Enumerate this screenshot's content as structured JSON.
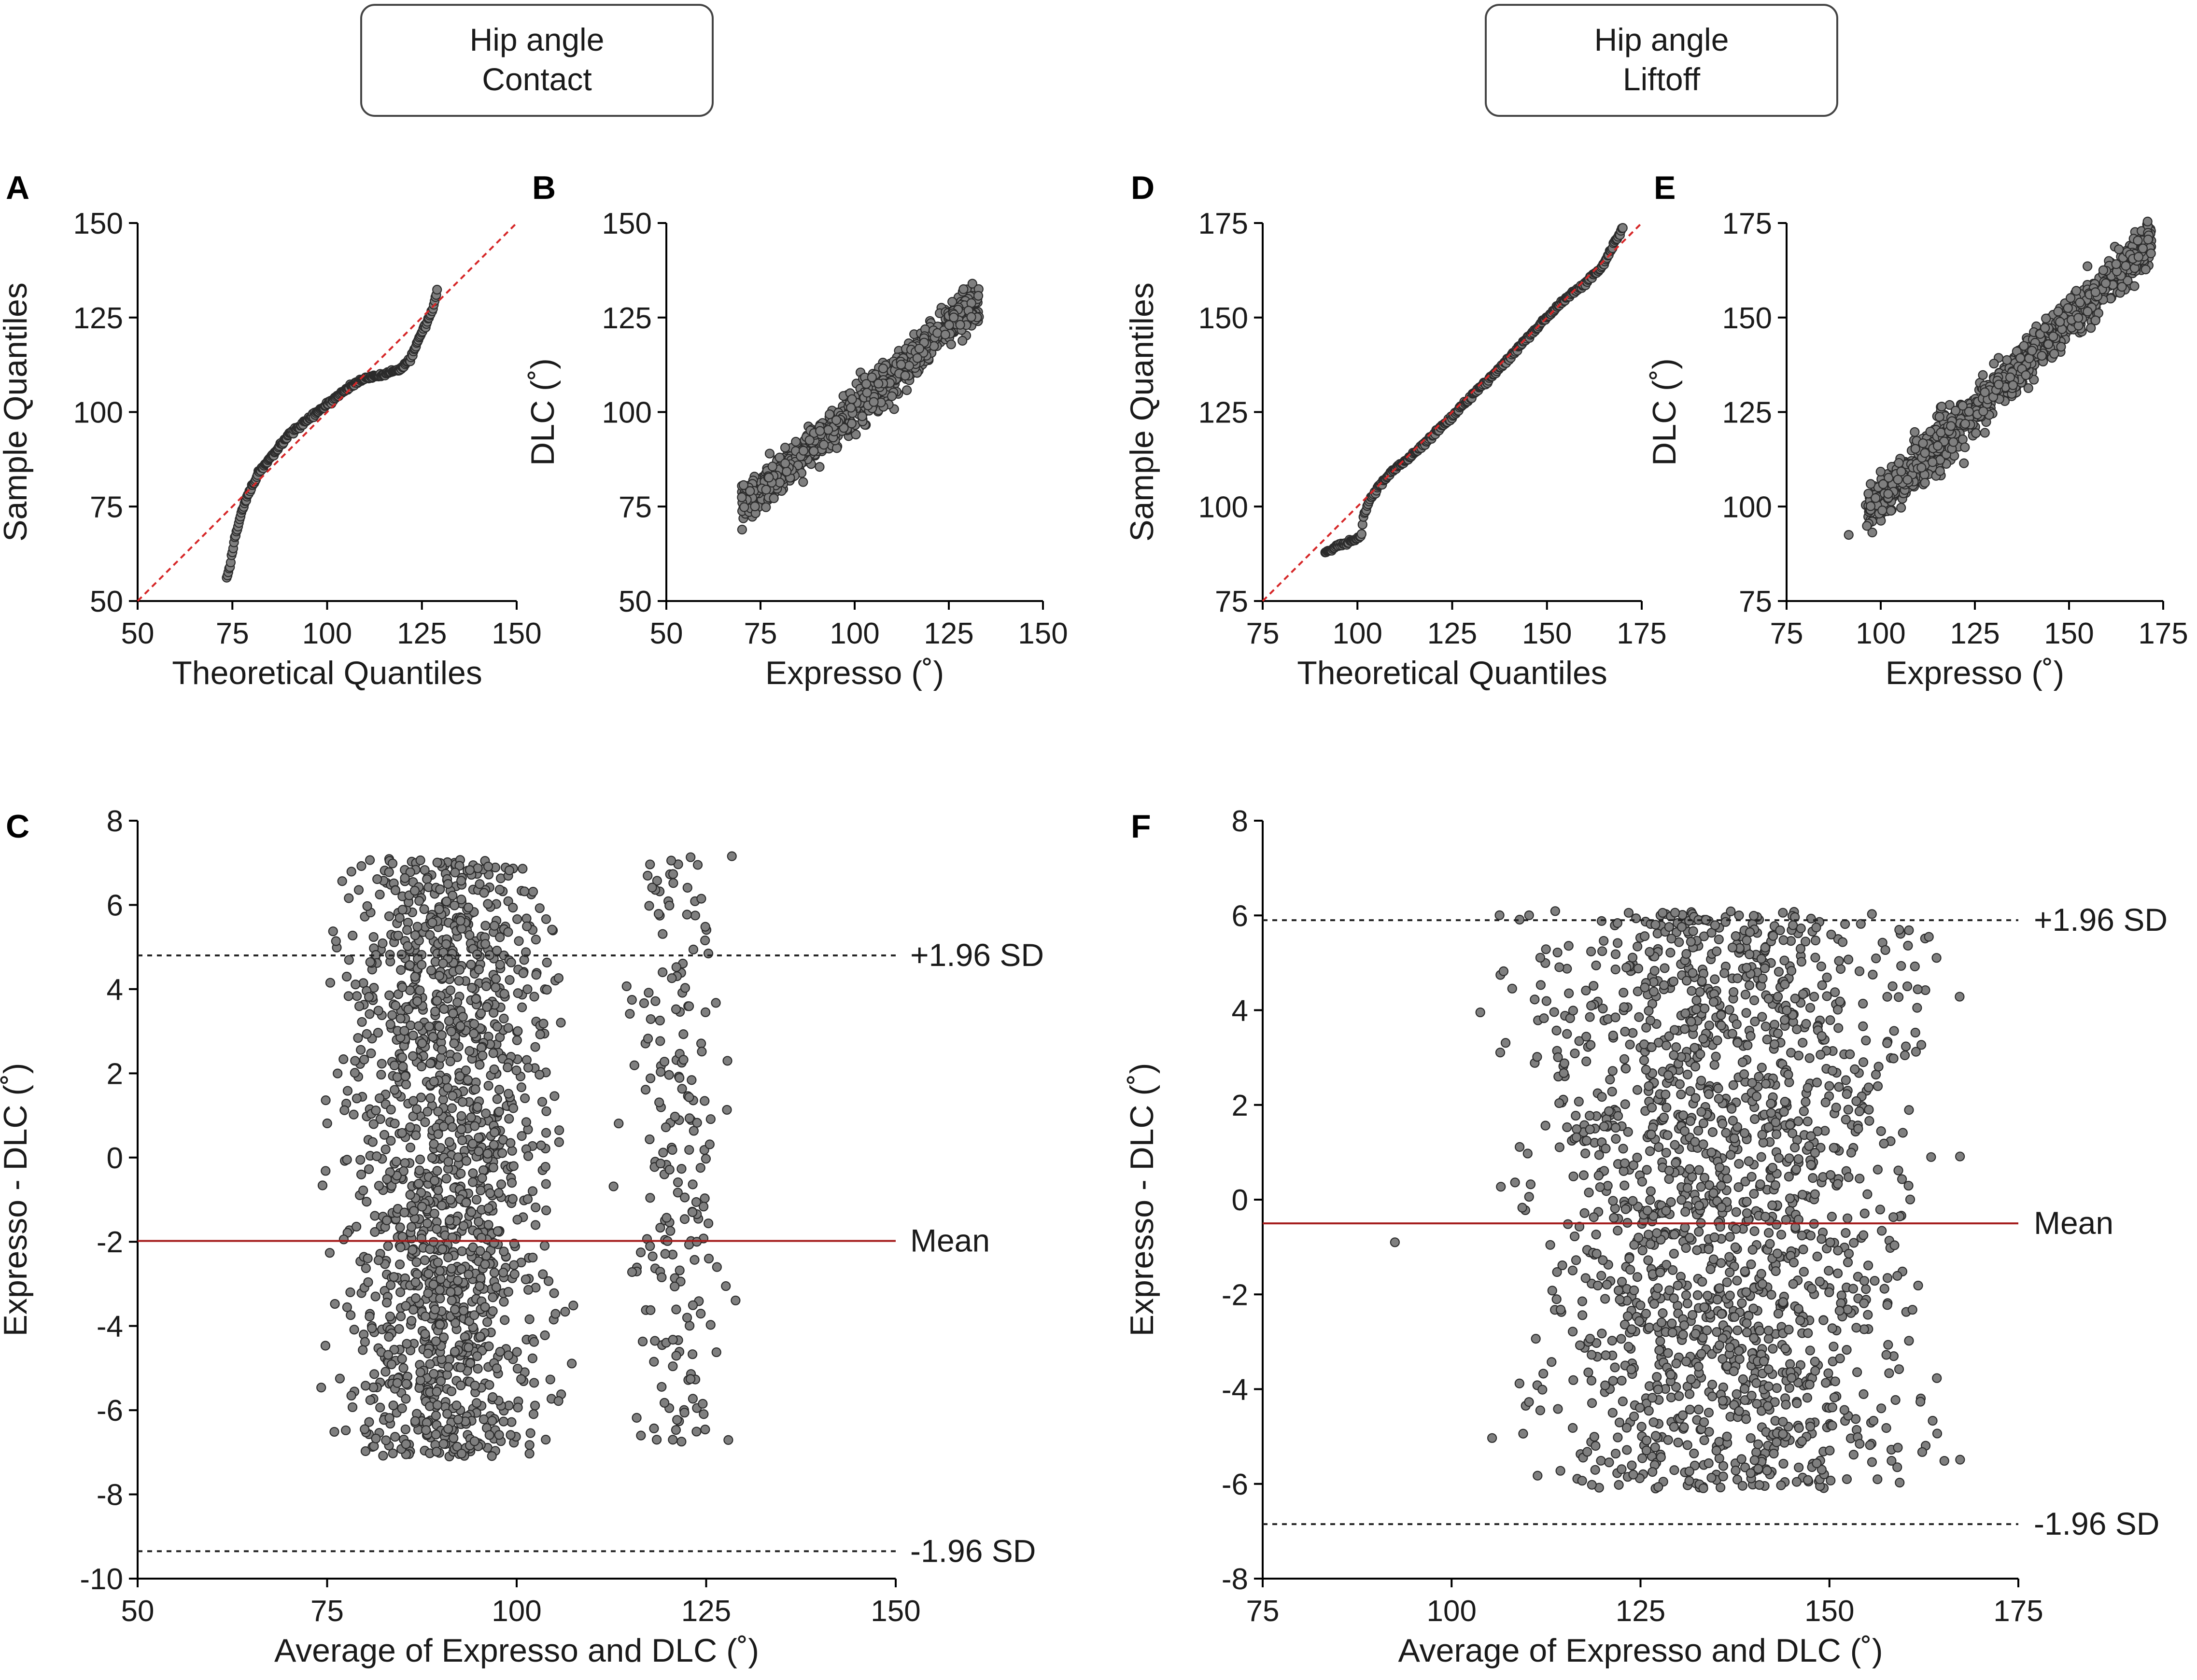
{
  "groups": [
    {
      "title_line1": "Hip angle",
      "title_line2": "Contact"
    },
    {
      "title_line1": "Hip angle",
      "title_line2": "Liftoff"
    }
  ],
  "style": {
    "marker_fill": "#7f7f7f",
    "marker_edge": "#2b2b2b",
    "reference_color": "#d62728",
    "mean_color": "#a51c1c"
  },
  "chart_data": [
    {
      "id": "A",
      "letter": "A",
      "type": "scatter",
      "kind": "qq",
      "xlabel": "Theoretical Quantiles",
      "ylabel": "Sample Quantiles",
      "xlim": [
        50,
        150
      ],
      "ylim": [
        50,
        150
      ],
      "xticks": [
        50,
        75,
        100,
        125,
        150
      ],
      "yticks": [
        50,
        75,
        100,
        125,
        150
      ],
      "reference_line": {
        "from": [
          50,
          50
        ],
        "to": [
          150,
          150
        ],
        "style": "dashed",
        "color": "#d62728"
      },
      "curve": {
        "x": [
          73.5,
          74.5,
          75.5,
          77,
          79,
          82,
          86,
          90,
          95,
          100,
          105,
          110,
          115,
          119,
          122,
          124,
          126,
          128,
          129
        ],
        "y": [
          56,
          60,
          66,
          72,
          78,
          84,
          89,
          94,
          98,
          102,
          106,
          109,
          110,
          111,
          114,
          119,
          123,
          128,
          132
        ]
      },
      "n_points": 260
    },
    {
      "id": "B",
      "letter": "B",
      "type": "scatter",
      "kind": "scatter",
      "xlabel": "Expresso (˚)",
      "ylabel": "DLC (˚)",
      "xlim": [
        50,
        150
      ],
      "ylim": [
        50,
        150
      ],
      "xticks": [
        50,
        75,
        100,
        125,
        150
      ],
      "yticks": [
        50,
        75,
        100,
        125,
        150
      ],
      "trend": {
        "x_range": [
          70,
          133
        ],
        "slope": 0.87,
        "intercept": 14,
        "spread": 2.8
      },
      "n_points": 900
    },
    {
      "id": "C",
      "letter": "C",
      "type": "scatter",
      "kind": "bland-altman",
      "xlabel": "Average of Expresso and DLC (˚)",
      "ylabel": "Expresso - DLC (˚)",
      "xlim": [
        50,
        150
      ],
      "ylim": [
        -10,
        8
      ],
      "xticks": [
        50,
        75,
        100,
        125,
        150
      ],
      "yticks": [
        -10,
        -8,
        -6,
        -4,
        -2,
        0,
        2,
        4,
        6,
        8
      ],
      "mean": -1.98,
      "upper_loa": 4.8,
      "lower_loa": -9.35,
      "mean_label": "Mean",
      "upper_label": "+1.96 SD",
      "lower_label": "-1.96 SD",
      "clusters": [
        {
          "x_range": [
            72,
            110
          ],
          "y_range": [
            -7.1,
            7.1
          ],
          "n": 1500
        },
        {
          "x_range": [
            112,
            130
          ],
          "y_range": [
            -7.0,
            7.2
          ],
          "n": 200
        }
      ]
    },
    {
      "id": "D",
      "letter": "D",
      "type": "scatter",
      "kind": "qq",
      "xlabel": "Theoretical Quantiles",
      "ylabel": "Sample Quantiles",
      "xlim": [
        75,
        175
      ],
      "ylim": [
        75,
        175
      ],
      "xticks": [
        75,
        100,
        125,
        150,
        175
      ],
      "yticks": [
        75,
        100,
        125,
        150,
        175
      ],
      "reference_line": {
        "from": [
          75,
          75
        ],
        "to": [
          175,
          175
        ],
        "style": "dashed",
        "color": "#d62728"
      },
      "curve": {
        "x": [
          91.5,
          101,
          101.5,
          103,
          106,
          110,
          115,
          120,
          125,
          130,
          135,
          140,
          145,
          150,
          155,
          160,
          165,
          168,
          170
        ],
        "y": [
          88,
          92,
          97,
          101,
          106,
          110,
          114,
          119,
          124,
          129,
          134,
          139,
          145,
          150,
          155,
          159,
          164,
          170,
          174
        ]
      },
      "n_points": 320
    },
    {
      "id": "E",
      "letter": "E",
      "type": "scatter",
      "kind": "scatter",
      "xlabel": "Expresso (˚)",
      "ylabel": "DLC (˚)",
      "xlim": [
        75,
        175
      ],
      "ylim": [
        75,
        175
      ],
      "xticks": [
        75,
        100,
        125,
        150,
        175
      ],
      "yticks": [
        75,
        100,
        125,
        150,
        175
      ],
      "trend": {
        "x_range": [
          96,
          172
        ],
        "slope": 0.95,
        "intercept": 7,
        "spread": 3.0
      },
      "outliers": [
        {
          "x": 91.5,
          "y": 92.5
        }
      ],
      "n_points": 1100
    },
    {
      "id": "F",
      "letter": "F",
      "type": "scatter",
      "kind": "bland-altman",
      "xlabel": "Average of Expresso and DLC (˚)",
      "ylabel": "Expresso - DLC (˚)",
      "xlim": [
        75,
        175
      ],
      "ylim": [
        -8,
        8
      ],
      "xticks": [
        75,
        100,
        125,
        150,
        175
      ],
      "yticks": [
        -8,
        -6,
        -4,
        -2,
        0,
        2,
        4,
        6,
        8
      ],
      "mean": -0.5,
      "upper_loa": 5.9,
      "lower_loa": -6.85,
      "mean_label": "Mean",
      "upper_label": "+1.96 SD",
      "lower_label": "-1.96 SD",
      "clusters": [
        {
          "x_range": [
            100,
            172
          ],
          "y_range": [
            -6.1,
            6.1
          ],
          "n": 1700
        }
      ],
      "outliers": [
        {
          "x": 92.5,
          "y": -0.9
        }
      ]
    }
  ]
}
